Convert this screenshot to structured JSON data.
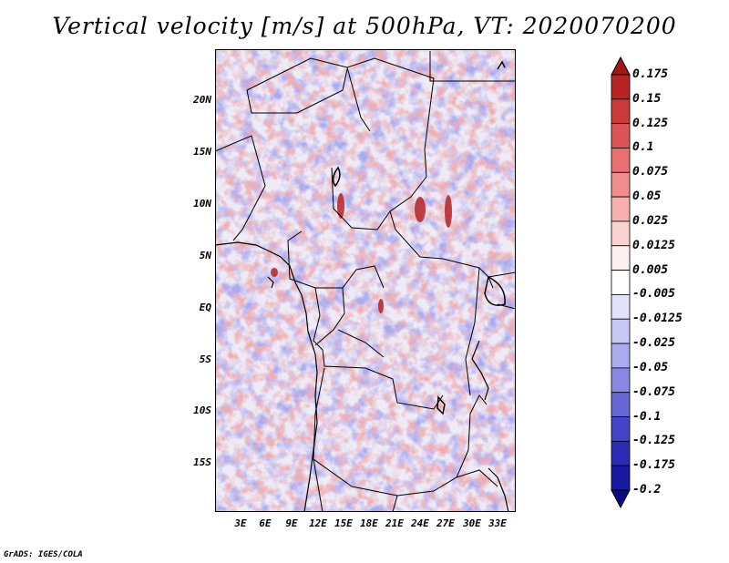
{
  "title": "Vertical velocity [m/s] at 500hPa, VT: 2020070200",
  "credit": "GrADS: IGES/COLA",
  "lat_labels": [
    "20N",
    "15N",
    "10N",
    "5N",
    "EQ",
    "5S",
    "10S",
    "15S"
  ],
  "lon_labels": [
    "3E",
    "6E",
    "9E",
    "12E",
    "15E",
    "18E",
    "21E",
    "24E",
    "27E",
    "30E",
    "33E"
  ],
  "colorbar": {
    "levels": [
      "0.175",
      "0.15",
      "0.125",
      "0.1",
      "0.075",
      "0.05",
      "0.025",
      "0.0125",
      "0.005",
      "-0.005",
      "-0.0125",
      "-0.025",
      "-0.05",
      "-0.075",
      "-0.1",
      "-0.125",
      "-0.175",
      "-0.2"
    ],
    "colors": [
      "#a01818",
      "#b82424",
      "#cc3a3a",
      "#dc5454",
      "#e87070",
      "#f08e8e",
      "#f6b0b0",
      "#fad2d2",
      "#fdf0f0",
      "#ffffff",
      "#e2e2fa",
      "#c8c8f4",
      "#aaaaee",
      "#8888e2",
      "#6666d6",
      "#4444c8",
      "#2a2ab4",
      "#1818a0",
      "#0a0a80"
    ]
  },
  "map": {
    "background_color": "#eeeaf6",
    "red_patch_color": "#e86a6a",
    "blue_patch_color": "#6a6ad8"
  }
}
